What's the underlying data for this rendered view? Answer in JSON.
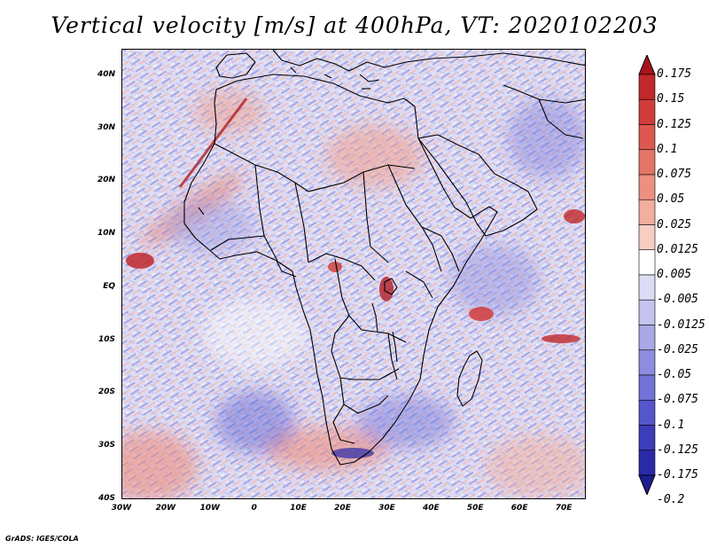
{
  "title": "Vertical velocity [m/s] at 400hPa, VT: 2020102203",
  "credit": "GrADS: IGES/COLA",
  "map": {
    "lon_range": [
      -30,
      75
    ],
    "lat_range": [
      -40,
      45
    ],
    "lat_ticks": [
      {
        "value": 40,
        "label": "40N"
      },
      {
        "value": 30,
        "label": "30N"
      },
      {
        "value": 20,
        "label": "20N"
      },
      {
        "value": 10,
        "label": "10N"
      },
      {
        "value": 0,
        "label": "EQ"
      },
      {
        "value": -10,
        "label": "10S"
      },
      {
        "value": -20,
        "label": "20S"
      },
      {
        "value": -30,
        "label": "30S"
      },
      {
        "value": -40,
        "label": "40S"
      }
    ],
    "lon_ticks": [
      {
        "value": -30,
        "label": "30W"
      },
      {
        "value": -20,
        "label": "20W"
      },
      {
        "value": -10,
        "label": "10W"
      },
      {
        "value": 0,
        "label": "0"
      },
      {
        "value": 10,
        "label": "10E"
      },
      {
        "value": 20,
        "label": "20E"
      },
      {
        "value": 30,
        "label": "30E"
      },
      {
        "value": 40,
        "label": "40E"
      },
      {
        "value": 50,
        "label": "50E"
      },
      {
        "value": 60,
        "label": "60E"
      },
      {
        "value": 70,
        "label": "70E"
      }
    ]
  },
  "colorbar": {
    "labels": [
      "0.175",
      "0.15",
      "0.125",
      "0.1",
      "0.075",
      "0.05",
      "0.025",
      "0.0125",
      "0.005",
      "-0.005",
      "-0.0125",
      "-0.025",
      "-0.05",
      "-0.075",
      "-0.1",
      "-0.125",
      "-0.175",
      "-0.2"
    ],
    "colors": [
      "#a8141c",
      "#c0282a",
      "#d03c3a",
      "#dc5850",
      "#e47466",
      "#ec9080",
      "#f2ae9e",
      "#f8cdc2",
      "#ffffff",
      "#dcdcf4",
      "#c4c4ee",
      "#a8a8e6",
      "#8c8ce0",
      "#7272d8",
      "#5656cc",
      "#3c3cbc",
      "#2a2aa8",
      "#1c1c90"
    ]
  }
}
